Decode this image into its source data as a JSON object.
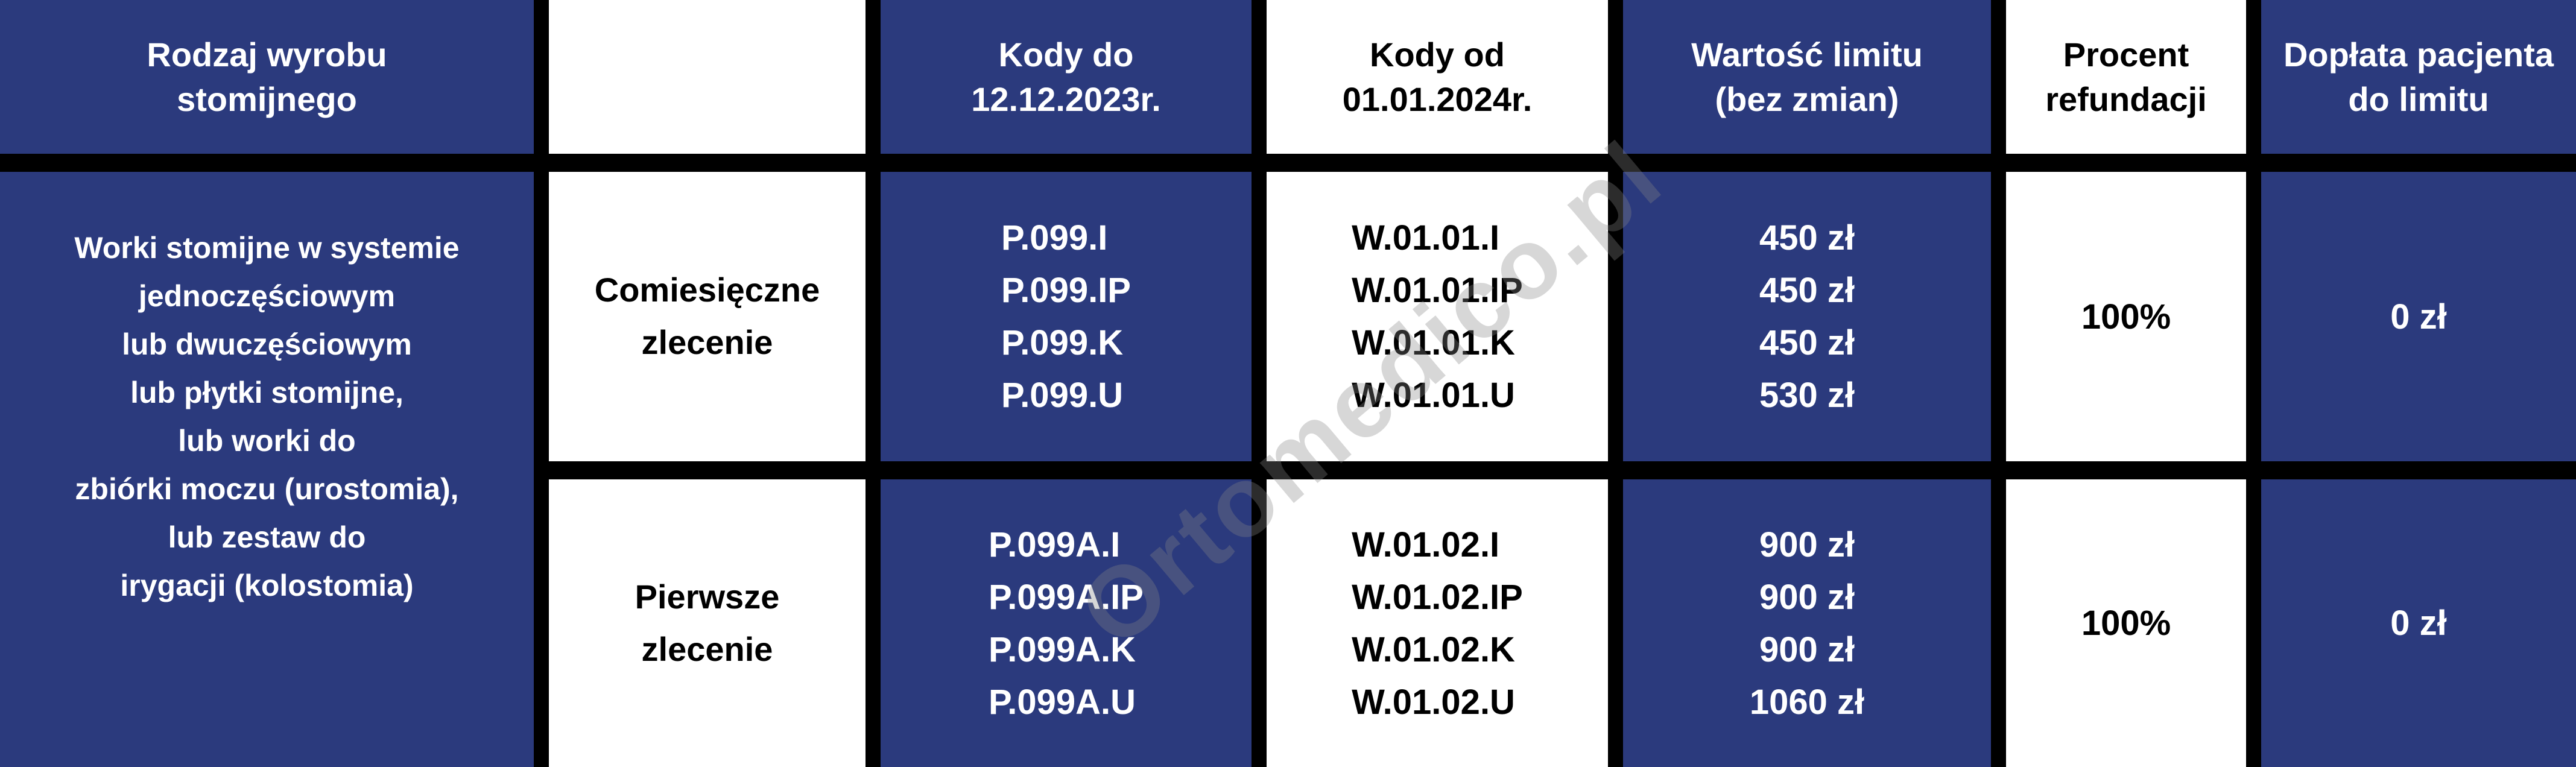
{
  "colors": {
    "navy": "#2b3a7d",
    "grid_black": "#000000",
    "white": "#ffffff",
    "watermark_gray": "#878787"
  },
  "watermark": {
    "text": "Ortomedico.pl"
  },
  "table": {
    "header": {
      "rodzaj": "Rodzaj wyrobu\nstomijnego",
      "empty": "",
      "kody_do": "Kody do\n12.12.2023r.",
      "kody_od": "Kody od\n01.01.2024r.",
      "wartosc": "Wartość limitu\n(bez zmian)",
      "procent": "Procent\nrefundacji",
      "doplata": "Dopłata pacjenta\ndo limitu"
    },
    "product": "Worki stomijne w systemie\njednoczęściowym\nlub dwuczęściowym\nlub płytki stomijne,\nlub worki do\nzbiórki moczu (urostomia),\nlub zestaw do\nirygacji (kolostomia)",
    "rows": [
      {
        "zlecenie": "Comiesięczne\nzlecenie",
        "kody_do": "P.099.I\nP.099.IP\nP.099.K\nP.099.U",
        "kody_od": "W.01.01.I\nW.01.01.IP\nW.01.01.K\nW.01.01.U",
        "limit": "450 zł\n450 zł\n450 zł\n530 zł",
        "procent": "100%",
        "doplata": "0 zł"
      },
      {
        "zlecenie": "Pierwsze\nzlecenie",
        "kody_do": "P.099A.I\nP.099A.IP\nP.099A.K\nP.099A.U",
        "kody_od": "W.01.02.I\nW.01.02.IP\nW.01.02.K\nW.01.02.U",
        "limit": "900 zł\n900 zł\n900 zł\n1060 zł",
        "procent": "100%",
        "doplata": "0 zł"
      }
    ]
  }
}
